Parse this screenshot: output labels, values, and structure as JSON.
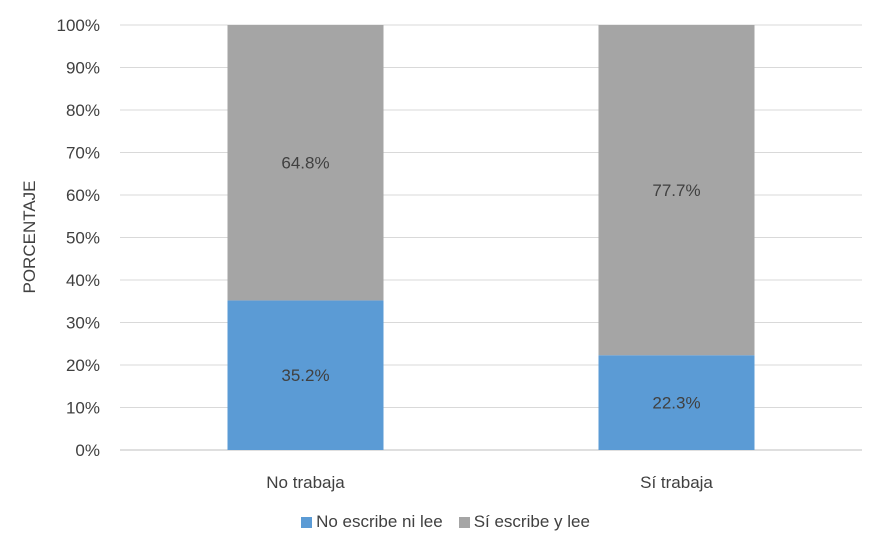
{
  "chart_data": {
    "type": "bar",
    "stacked": true,
    "categories": [
      "No trabaja",
      "Sí trabaja"
    ],
    "series": [
      {
        "name": "No escribe ni lee",
        "values": [
          35.2,
          22.3
        ],
        "labels": [
          "35.2%",
          "22.3%"
        ],
        "color": "#5B9BD5"
      },
      {
        "name": "Sí escribe y lee",
        "values": [
          64.8,
          77.7
        ],
        "labels": [
          "64.8%",
          "77.7%"
        ],
        "color": "#A5A5A5"
      }
    ],
    "ylabel": "PORCENTAJE",
    "xlabel": "",
    "ylim": [
      0,
      100
    ],
    "yticks": [
      "0%",
      "10%",
      "20%",
      "30%",
      "40%",
      "50%",
      "60%",
      "70%",
      "80%",
      "90%",
      "100%"
    ],
    "grid": true,
    "legend": "bottom"
  }
}
